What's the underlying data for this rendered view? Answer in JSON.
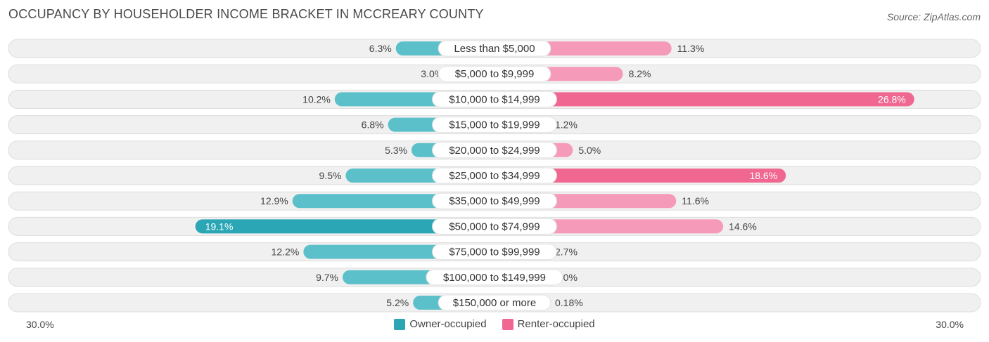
{
  "title": "OCCUPANCY BY HOUSEHOLDER INCOME BRACKET IN MCCREARY COUNTY",
  "source": "Source: ZipAtlas.com",
  "colors": {
    "owner": "#5bc0c9",
    "owner_strong": "#2aa6b5",
    "renter": "#f59ab8",
    "renter_strong": "#f06792",
    "row_bg": "#f0f0f0",
    "row_border": "#dddddd"
  },
  "axis": {
    "left_label": "30.0%",
    "right_label": "30.0%"
  },
  "legend": [
    {
      "label": "Owner-occupied",
      "color": "#2aa6b5"
    },
    {
      "label": "Renter-occupied",
      "color": "#f06792"
    }
  ],
  "chart_data": {
    "type": "bar",
    "orientation": "horizontal-diverging",
    "title": "OCCUPANCY BY HOUSEHOLDER INCOME BRACKET IN MCCREARY COUNTY",
    "xlim": [
      -30,
      30
    ],
    "categories": [
      "Less than $5,000",
      "$5,000 to $9,999",
      "$10,000 to $14,999",
      "$15,000 to $19,999",
      "$20,000 to $24,999",
      "$25,000 to $34,999",
      "$35,000 to $49,999",
      "$50,000 to $74,999",
      "$75,000 to $99,999",
      "$100,000 to $149,999",
      "$150,000 or more"
    ],
    "series": [
      {
        "name": "Owner-occupied",
        "values": [
          6.3,
          3.0,
          10.2,
          6.8,
          5.3,
          9.5,
          12.9,
          19.1,
          12.2,
          9.7,
          5.2
        ],
        "labels": [
          "6.3%",
          "3.0%",
          "10.2%",
          "6.8%",
          "5.3%",
          "9.5%",
          "12.9%",
          "19.1%",
          "12.2%",
          "9.7%",
          "5.2%"
        ]
      },
      {
        "name": "Renter-occupied",
        "values": [
          11.3,
          8.2,
          26.8,
          1.2,
          5.0,
          18.6,
          11.6,
          14.6,
          2.7,
          0.0,
          0.18
        ],
        "labels": [
          "11.3%",
          "8.2%",
          "26.8%",
          "1.2%",
          "5.0%",
          "18.6%",
          "11.6%",
          "14.6%",
          "2.7%",
          "0.0%",
          "0.18%"
        ]
      }
    ]
  }
}
